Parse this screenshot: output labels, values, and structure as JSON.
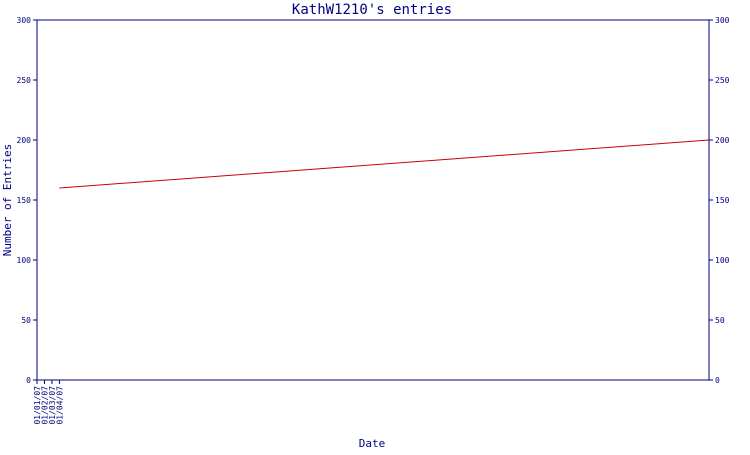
{
  "chart_data": {
    "type": "line",
    "title": "KathW1210's entries",
    "xlabel": "Date",
    "ylabel": "Number of Entries",
    "x_ticks": [
      "01/01/07",
      "01/02/07",
      "01/03/07",
      "01/04/07"
    ],
    "x_range": [
      "2007-01-01",
      "2007-04-01"
    ],
    "ylim": [
      0,
      300
    ],
    "y_ticks": [
      0,
      50,
      100,
      150,
      200,
      250,
      300
    ],
    "grid": false,
    "secondary_y_axis": true,
    "series": [
      {
        "color": "#cc0000",
        "points": [
          {
            "x": "2007-01-04",
            "y": 160
          },
          {
            "x": "2007-04-01",
            "y": 200
          }
        ]
      }
    ]
  },
  "colors": {
    "axis": "#000080",
    "text": "#000080",
    "line": "#cc0000",
    "background": "#ffffff"
  }
}
